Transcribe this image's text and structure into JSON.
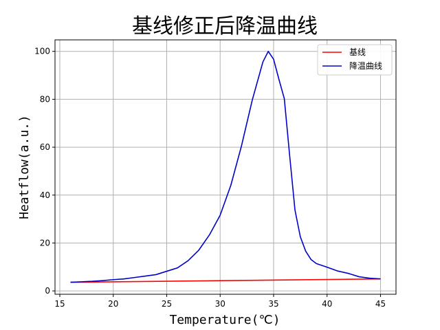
{
  "chart_data": {
    "type": "line",
    "title": "基线修正后降温曲线",
    "xlabel": "Temperature(℃)",
    "ylabel": "Heatflow(a.u.)",
    "xlim": [
      14.55,
      46.45
    ],
    "ylim": [
      -1.4,
      104.8
    ],
    "xticks": [
      15,
      20,
      25,
      30,
      35,
      40,
      45
    ],
    "yticks": [
      0,
      20,
      40,
      60,
      80,
      100
    ],
    "grid": true,
    "legend_position": "top-right",
    "series": [
      {
        "name": "基线",
        "color": "#ff0000",
        "points": [
          [
            16,
            3.6
          ],
          [
            45,
            5.0
          ]
        ]
      },
      {
        "name": "降温曲线",
        "color": "#0000cc",
        "points": [
          [
            16,
            3.6
          ],
          [
            17,
            3.8
          ],
          [
            18,
            4.0
          ],
          [
            19,
            4.3
          ],
          [
            20,
            4.7
          ],
          [
            21,
            5.0
          ],
          [
            22,
            5.6
          ],
          [
            23,
            6.2
          ],
          [
            24,
            6.8
          ],
          [
            25,
            8.2
          ],
          [
            26,
            9.6
          ],
          [
            27,
            12.6
          ],
          [
            28,
            17.0
          ],
          [
            29,
            23.4
          ],
          [
            30,
            31.6
          ],
          [
            31,
            44.1
          ],
          [
            32,
            60.6
          ],
          [
            33,
            79.6
          ],
          [
            34,
            95.6
          ],
          [
            34.5,
            100.0
          ],
          [
            35,
            96.7
          ],
          [
            35.5,
            88.3
          ],
          [
            36,
            80.3
          ],
          [
            36.5,
            56.6
          ],
          [
            37,
            33.7
          ],
          [
            37.5,
            22.6
          ],
          [
            38,
            16.6
          ],
          [
            38.5,
            13.1
          ],
          [
            39,
            11.4
          ],
          [
            40,
            9.9
          ],
          [
            41,
            8.3
          ],
          [
            42,
            7.3
          ],
          [
            43,
            5.9
          ],
          [
            44,
            5.3
          ],
          [
            45,
            5.0
          ]
        ]
      }
    ]
  }
}
